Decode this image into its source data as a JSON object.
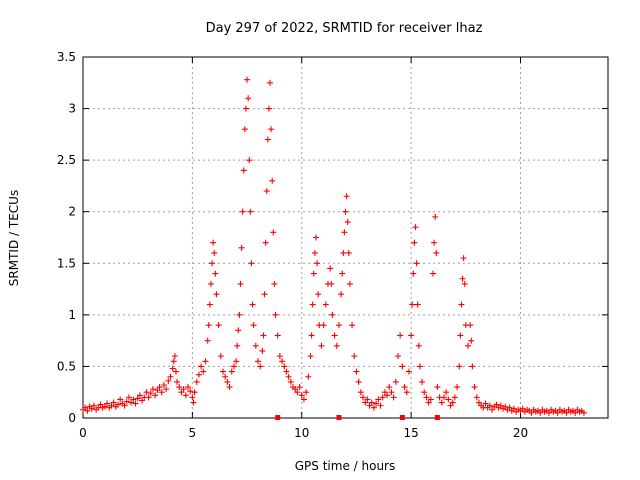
{
  "chart_data": {
    "type": "scatter",
    "title": "Day 297 of 2022, SRMTID for receiver lhaz",
    "xlabel": "GPS time / hours",
    "ylabel": "SRMTID / TECUs",
    "xlim": [
      0,
      24
    ],
    "ylim": [
      0,
      3.5
    ],
    "x_ticks": [
      0,
      5,
      10,
      15,
      20
    ],
    "y_ticks": [
      0,
      0.5,
      1,
      1.5,
      2,
      2.5,
      3,
      3.5
    ],
    "x_tick_labels": [
      "0",
      "5",
      "10",
      "15",
      "20"
    ],
    "y_tick_labels": [
      "0",
      "0.5",
      "1",
      "1.5",
      "2",
      "2.5",
      "3",
      "3.5"
    ],
    "grid": true,
    "marker": "+",
    "color": "#ff0000",
    "series": [
      {
        "name": "SRMTID",
        "points": [
          [
            0.0,
            0.08
          ],
          [
            0.1,
            0.1
          ],
          [
            0.2,
            0.07
          ],
          [
            0.3,
            0.11
          ],
          [
            0.4,
            0.09
          ],
          [
            0.5,
            0.12
          ],
          [
            0.6,
            0.08
          ],
          [
            0.7,
            0.1
          ],
          [
            0.8,
            0.13
          ],
          [
            0.9,
            0.1
          ],
          [
            1.0,
            0.11
          ],
          [
            1.1,
            0.14
          ],
          [
            1.2,
            0.1
          ],
          [
            1.3,
            0.12
          ],
          [
            1.4,
            0.15
          ],
          [
            1.5,
            0.11
          ],
          [
            1.6,
            0.13
          ],
          [
            1.7,
            0.18
          ],
          [
            1.8,
            0.14
          ],
          [
            1.9,
            0.12
          ],
          [
            2.0,
            0.16
          ],
          [
            2.1,
            0.2
          ],
          [
            2.2,
            0.15
          ],
          [
            2.3,
            0.18
          ],
          [
            2.4,
            0.14
          ],
          [
            2.5,
            0.19
          ],
          [
            2.6,
            0.22
          ],
          [
            2.7,
            0.17
          ],
          [
            2.8,
            0.2
          ],
          [
            2.9,
            0.25
          ],
          [
            3.0,
            0.2
          ],
          [
            3.1,
            0.24
          ],
          [
            3.2,
            0.28
          ],
          [
            3.3,
            0.22
          ],
          [
            3.4,
            0.27
          ],
          [
            3.5,
            0.3
          ],
          [
            3.6,
            0.25
          ],
          [
            3.7,
            0.32
          ],
          [
            3.8,
            0.28
          ],
          [
            3.9,
            0.36
          ],
          [
            4.0,
            0.4
          ],
          [
            4.1,
            0.48
          ],
          [
            4.15,
            0.55
          ],
          [
            4.2,
            0.6
          ],
          [
            4.25,
            0.45
          ],
          [
            4.3,
            0.35
          ],
          [
            4.4,
            0.3
          ],
          [
            4.5,
            0.25
          ],
          [
            4.6,
            0.28
          ],
          [
            4.7,
            0.22
          ],
          [
            4.8,
            0.3
          ],
          [
            4.9,
            0.26
          ],
          [
            5.0,
            0.2
          ],
          [
            5.05,
            0.15
          ],
          [
            5.1,
            0.25
          ],
          [
            5.2,
            0.35
          ],
          [
            5.3,
            0.42
          ],
          [
            5.4,
            0.5
          ],
          [
            5.5,
            0.45
          ],
          [
            5.6,
            0.55
          ],
          [
            5.7,
            0.75
          ],
          [
            5.75,
            0.9
          ],
          [
            5.8,
            1.1
          ],
          [
            5.85,
            1.3
          ],
          [
            5.9,
            1.5
          ],
          [
            5.95,
            1.7
          ],
          [
            6.0,
            1.6
          ],
          [
            6.05,
            1.4
          ],
          [
            6.1,
            1.2
          ],
          [
            6.2,
            0.9
          ],
          [
            6.3,
            0.6
          ],
          [
            6.4,
            0.45
          ],
          [
            6.5,
            0.4
          ],
          [
            6.6,
            0.35
          ],
          [
            6.7,
            0.3
          ],
          [
            6.8,
            0.45
          ],
          [
            6.9,
            0.5
          ],
          [
            7.0,
            0.55
          ],
          [
            7.05,
            0.7
          ],
          [
            7.1,
            0.85
          ],
          [
            7.15,
            1.0
          ],
          [
            7.2,
            1.3
          ],
          [
            7.25,
            1.65
          ],
          [
            7.3,
            2.0
          ],
          [
            7.35,
            2.4
          ],
          [
            7.4,
            2.8
          ],
          [
            7.45,
            3.0
          ],
          [
            7.5,
            3.28
          ],
          [
            7.55,
            3.1
          ],
          [
            7.6,
            2.5
          ],
          [
            7.65,
            2.0
          ],
          [
            7.7,
            1.5
          ],
          [
            7.75,
            1.1
          ],
          [
            7.8,
            0.9
          ],
          [
            7.9,
            0.7
          ],
          [
            8.0,
            0.55
          ],
          [
            8.1,
            0.5
          ],
          [
            8.2,
            0.65
          ],
          [
            8.25,
            0.8
          ],
          [
            8.3,
            1.2
          ],
          [
            8.35,
            1.7
          ],
          [
            8.4,
            2.2
          ],
          [
            8.45,
            2.7
          ],
          [
            8.5,
            3.0
          ],
          [
            8.55,
            3.25
          ],
          [
            8.6,
            2.8
          ],
          [
            8.65,
            2.3
          ],
          [
            8.7,
            1.8
          ],
          [
            8.75,
            1.3
          ],
          [
            8.8,
            1.0
          ],
          [
            8.9,
            0.8
          ],
          [
            9.0,
            0.6
          ],
          [
            9.1,
            0.55
          ],
          [
            9.2,
            0.5
          ],
          [
            9.3,
            0.45
          ],
          [
            9.4,
            0.4
          ],
          [
            9.5,
            0.35
          ],
          [
            9.6,
            0.3
          ],
          [
            9.7,
            0.28
          ],
          [
            9.8,
            0.25
          ],
          [
            9.9,
            0.3
          ],
          [
            10.0,
            0.22
          ],
          [
            10.1,
            0.18
          ],
          [
            10.2,
            0.25
          ],
          [
            10.3,
            0.4
          ],
          [
            10.4,
            0.6
          ],
          [
            10.45,
            0.8
          ],
          [
            10.5,
            1.1
          ],
          [
            10.55,
            1.4
          ],
          [
            10.6,
            1.6
          ],
          [
            10.65,
            1.75
          ],
          [
            10.7,
            1.5
          ],
          [
            10.75,
            1.2
          ],
          [
            10.8,
            0.9
          ],
          [
            10.9,
            0.7
          ],
          [
            11.0,
            0.9
          ],
          [
            11.1,
            1.1
          ],
          [
            11.2,
            1.3
          ],
          [
            11.3,
            1.45
          ],
          [
            11.35,
            1.3
          ],
          [
            11.4,
            1.0
          ],
          [
            11.5,
            0.8
          ],
          [
            11.6,
            0.7
          ],
          [
            11.7,
            0.9
          ],
          [
            11.8,
            1.2
          ],
          [
            11.85,
            1.4
          ],
          [
            11.9,
            1.6
          ],
          [
            11.95,
            1.8
          ],
          [
            12.0,
            2.0
          ],
          [
            12.05,
            2.15
          ],
          [
            12.1,
            1.9
          ],
          [
            12.15,
            1.6
          ],
          [
            12.2,
            1.3
          ],
          [
            12.3,
            0.9
          ],
          [
            12.4,
            0.6
          ],
          [
            12.5,
            0.45
          ],
          [
            12.6,
            0.35
          ],
          [
            12.7,
            0.25
          ],
          [
            12.8,
            0.2
          ],
          [
            12.9,
            0.15
          ],
          [
            13.0,
            0.18
          ],
          [
            13.1,
            0.12
          ],
          [
            13.2,
            0.15
          ],
          [
            13.3,
            0.1
          ],
          [
            13.4,
            0.14
          ],
          [
            13.5,
            0.18
          ],
          [
            13.6,
            0.12
          ],
          [
            13.7,
            0.2
          ],
          [
            13.8,
            0.25
          ],
          [
            13.9,
            0.22
          ],
          [
            14.0,
            0.3
          ],
          [
            14.1,
            0.25
          ],
          [
            14.2,
            0.2
          ],
          [
            14.3,
            0.35
          ],
          [
            14.4,
            0.6
          ],
          [
            14.5,
            0.8
          ],
          [
            14.6,
            0.5
          ],
          [
            14.7,
            0.3
          ],
          [
            14.8,
            0.25
          ],
          [
            14.9,
            0.45
          ],
          [
            15.0,
            0.8
          ],
          [
            15.05,
            1.1
          ],
          [
            15.1,
            1.4
          ],
          [
            15.15,
            1.7
          ],
          [
            15.2,
            1.85
          ],
          [
            15.25,
            1.5
          ],
          [
            15.3,
            1.1
          ],
          [
            15.35,
            0.7
          ],
          [
            15.4,
            0.5
          ],
          [
            15.5,
            0.35
          ],
          [
            15.6,
            0.25
          ],
          [
            15.7,
            0.2
          ],
          [
            15.8,
            0.15
          ],
          [
            15.9,
            0.18
          ],
          [
            16.0,
            1.4
          ],
          [
            16.05,
            1.7
          ],
          [
            16.1,
            1.95
          ],
          [
            16.15,
            1.6
          ],
          [
            16.2,
            0.3
          ],
          [
            16.3,
            0.2
          ],
          [
            16.4,
            0.15
          ],
          [
            16.5,
            0.2
          ],
          [
            16.6,
            0.25
          ],
          [
            16.7,
            0.18
          ],
          [
            16.8,
            0.12
          ],
          [
            16.9,
            0.15
          ],
          [
            17.0,
            0.2
          ],
          [
            17.1,
            0.3
          ],
          [
            17.2,
            0.5
          ],
          [
            17.25,
            0.8
          ],
          [
            17.3,
            1.1
          ],
          [
            17.35,
            1.35
          ],
          [
            17.4,
            1.55
          ],
          [
            17.45,
            1.3
          ],
          [
            17.5,
            0.9
          ],
          [
            17.6,
            0.7
          ],
          [
            17.7,
            0.9
          ],
          [
            17.75,
            0.75
          ],
          [
            17.8,
            0.5
          ],
          [
            17.9,
            0.3
          ],
          [
            18.0,
            0.2
          ],
          [
            18.1,
            0.15
          ],
          [
            18.2,
            0.12
          ],
          [
            18.3,
            0.1
          ],
          [
            18.4,
            0.14
          ],
          [
            18.5,
            0.1
          ],
          [
            18.6,
            0.12
          ],
          [
            18.7,
            0.08
          ],
          [
            18.8,
            0.11
          ],
          [
            18.9,
            0.13
          ],
          [
            19.0,
            0.1
          ],
          [
            19.1,
            0.12
          ],
          [
            19.2,
            0.09
          ],
          [
            19.3,
            0.11
          ],
          [
            19.4,
            0.08
          ],
          [
            19.5,
            0.1
          ],
          [
            19.6,
            0.07
          ],
          [
            19.7,
            0.09
          ],
          [
            19.8,
            0.06
          ],
          [
            19.9,
            0.08
          ],
          [
            20.0,
            0.07
          ],
          [
            20.1,
            0.09
          ],
          [
            20.2,
            0.06
          ],
          [
            20.3,
            0.08
          ],
          [
            20.4,
            0.07
          ],
          [
            20.5,
            0.05
          ],
          [
            20.6,
            0.08
          ],
          [
            20.7,
            0.06
          ],
          [
            20.8,
            0.07
          ],
          [
            20.9,
            0.05
          ],
          [
            21.0,
            0.08
          ],
          [
            21.1,
            0.06
          ],
          [
            21.2,
            0.07
          ],
          [
            21.3,
            0.05
          ],
          [
            21.4,
            0.08
          ],
          [
            21.5,
            0.06
          ],
          [
            21.6,
            0.07
          ],
          [
            21.7,
            0.05
          ],
          [
            21.8,
            0.08
          ],
          [
            21.9,
            0.06
          ],
          [
            22.0,
            0.07
          ],
          [
            22.1,
            0.05
          ],
          [
            22.2,
            0.08
          ],
          [
            22.3,
            0.06
          ],
          [
            22.4,
            0.07
          ],
          [
            22.5,
            0.05
          ],
          [
            22.6,
            0.08
          ],
          [
            22.7,
            0.06
          ],
          [
            22.8,
            0.07
          ],
          [
            22.9,
            0.05
          ]
        ]
      }
    ],
    "bottom_squares_x": [
      8.9,
      11.7,
      14.6,
      16.2
    ]
  }
}
